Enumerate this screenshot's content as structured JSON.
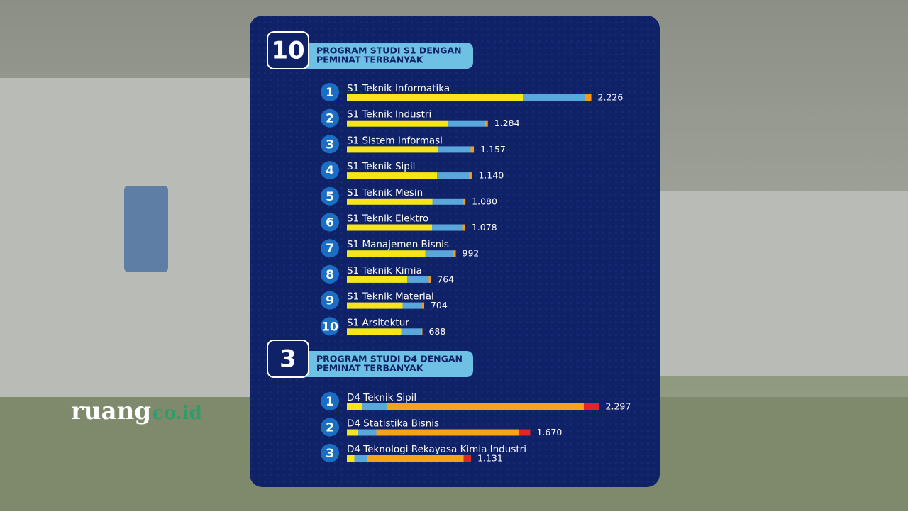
{
  "chart_data": [
    {
      "type": "bar",
      "orientation": "horizontal",
      "badge": 10,
      "title_lines": [
        "PROGRAM STUDI S1 DENGAN",
        "PEMINAT TERBANYAK"
      ],
      "ranks": [
        1,
        2,
        3,
        4,
        5,
        6,
        7,
        8,
        9,
        10
      ],
      "categories": [
        "S1 Teknik Informatika",
        "S1 Teknik Industri",
        "S1 Sistem Informasi",
        "S1 Teknik Sipil",
        "S1 Teknik Mesin",
        "S1 Teknik Elektro",
        "S1 Manajemen Bisnis",
        "S1 Teknik Kimia",
        "S1 Teknik Material",
        "S1 Arsitektur"
      ],
      "values": [
        2226,
        1284,
        1157,
        1140,
        1080,
        1078,
        992,
        764,
        704,
        688
      ],
      "value_labels": [
        "2.226",
        "1.284",
        "1.157",
        "1.140",
        "1.080",
        "1.078",
        "992",
        "764",
        "704",
        "688"
      ],
      "xlim": [
        0,
        2300
      ]
    },
    {
      "type": "bar",
      "orientation": "horizontal",
      "badge": 3,
      "title_lines": [
        "PROGRAM STUDI D4 DENGAN",
        "PEMINAT TERBANYAK"
      ],
      "ranks": [
        1,
        2,
        3
      ],
      "categories": [
        "D4 Teknik Sipil",
        "D4 Statistika Bisnis",
        "D4 Teknologi Rekayasa Kimia Industri"
      ],
      "values": [
        2297,
        1670,
        1131
      ],
      "value_labels": [
        "2.297",
        "1.670",
        "1.131"
      ],
      "xlim": [
        0,
        2300
      ]
    }
  ],
  "watermark": {
    "brand": "ruang",
    "suffix": "co.id"
  }
}
